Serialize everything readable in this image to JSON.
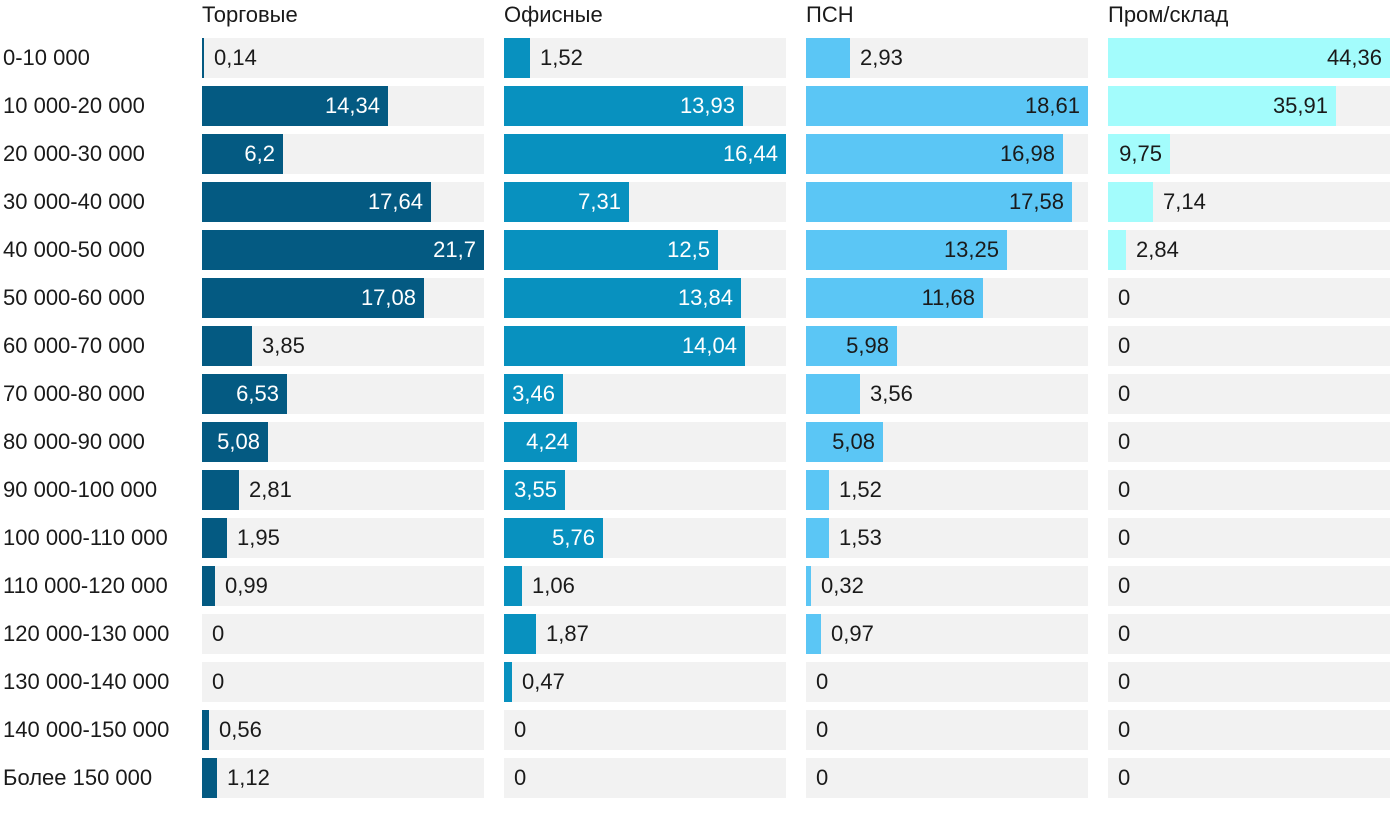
{
  "chart_data": {
    "type": "bar",
    "orientation": "horizontal",
    "layout": "small-multiples",
    "categories": [
      "0-10 000",
      "10 000-20 000",
      "20 000-30 000",
      "30 000-40 000",
      "40 000-50 000",
      "50 000-60 000",
      "60 000-70 000",
      "70 000-80 000",
      "80 000-90 000",
      "90 000-100 000",
      "100 000-110 000",
      "110 000-120 000",
      "120 000-130 000",
      "130 000-140 000",
      "140 000-150 000",
      "Более 150 000"
    ],
    "series": [
      {
        "name": "Торговые",
        "color": "#045a82",
        "text_inside_color": "#ffffff",
        "values": [
          0.14,
          14.34,
          6.2,
          17.64,
          21.7,
          17.08,
          3.85,
          6.53,
          5.08,
          2.81,
          1.95,
          0.99,
          0,
          0,
          0.56,
          1.12
        ],
        "labels": [
          "0,14",
          "14,34",
          "6,2",
          "17,64",
          "21,7",
          "17,08",
          "3,85",
          "6,53",
          "5,08",
          "2,81",
          "1,95",
          "0,99",
          "0",
          "0",
          "0,56",
          "1,12"
        ],
        "xlim": [
          0,
          21.7
        ]
      },
      {
        "name": "Офисные",
        "color": "#0891bf",
        "text_inside_color": "#ffffff",
        "values": [
          1.52,
          13.93,
          16.44,
          7.31,
          12.5,
          13.84,
          14.04,
          3.46,
          4.24,
          3.55,
          5.76,
          1.06,
          1.87,
          0.47,
          0,
          0
        ],
        "labels": [
          "1,52",
          "13,93",
          "16,44",
          "7,31",
          "12,5",
          "13,84",
          "14,04",
          "3,46",
          "4,24",
          "3,55",
          "5,76",
          "1,06",
          "1,87",
          "0,47",
          "0",
          "0"
        ],
        "xlim": [
          0,
          16.44
        ]
      },
      {
        "name": "ПСН",
        "color": "#5bc6f5",
        "text_inside_color": "#1a1a1a",
        "values": [
          2.93,
          18.61,
          16.98,
          17.58,
          13.25,
          11.68,
          5.98,
          3.56,
          5.08,
          1.52,
          1.53,
          0.32,
          0.97,
          0,
          0,
          0
        ],
        "labels": [
          "2,93",
          "18,61",
          "16,98",
          "17,58",
          "13,25",
          "11,68",
          "5,98",
          "3,56",
          "5,08",
          "1,52",
          "1,53",
          "0,32",
          "0,97",
          "0",
          "0",
          "0"
        ],
        "xlim": [
          0,
          18.61
        ]
      },
      {
        "name": "Пром/склад",
        "color": "#a3fcfc",
        "text_inside_color": "#1a1a1a",
        "values": [
          44.36,
          35.91,
          9.75,
          7.14,
          2.84,
          0,
          0,
          0,
          0,
          0,
          0,
          0,
          0,
          0,
          0,
          0
        ],
        "labels": [
          "44,36",
          "35,91",
          "9,75",
          "7,14",
          "2,84",
          "0",
          "0",
          "0",
          "0",
          "0",
          "0",
          "0",
          "0",
          "0",
          "0",
          "0"
        ],
        "xlim": [
          0,
          44.36
        ]
      }
    ],
    "grid": false,
    "legend": "none",
    "colors": {
      "track": "#f2f2f2",
      "text": "#1a1a1a"
    }
  }
}
